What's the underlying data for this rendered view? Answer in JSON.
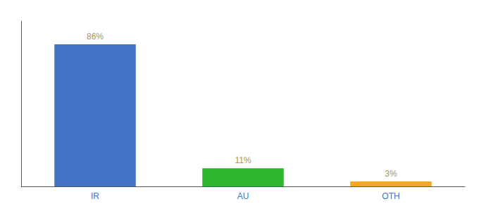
{
  "chart_data": {
    "type": "bar",
    "categories": [
      "IR",
      "AU",
      "OTH"
    ],
    "values": [
      86,
      11,
      3
    ],
    "value_labels": [
      "86%",
      "11%",
      "3%"
    ],
    "colors": [
      "#4472c4",
      "#2db52d",
      "#f5a623"
    ],
    "ylim": [
      0,
      100
    ],
    "data_labels": true,
    "tick_labels": "x",
    "grid": false
  }
}
